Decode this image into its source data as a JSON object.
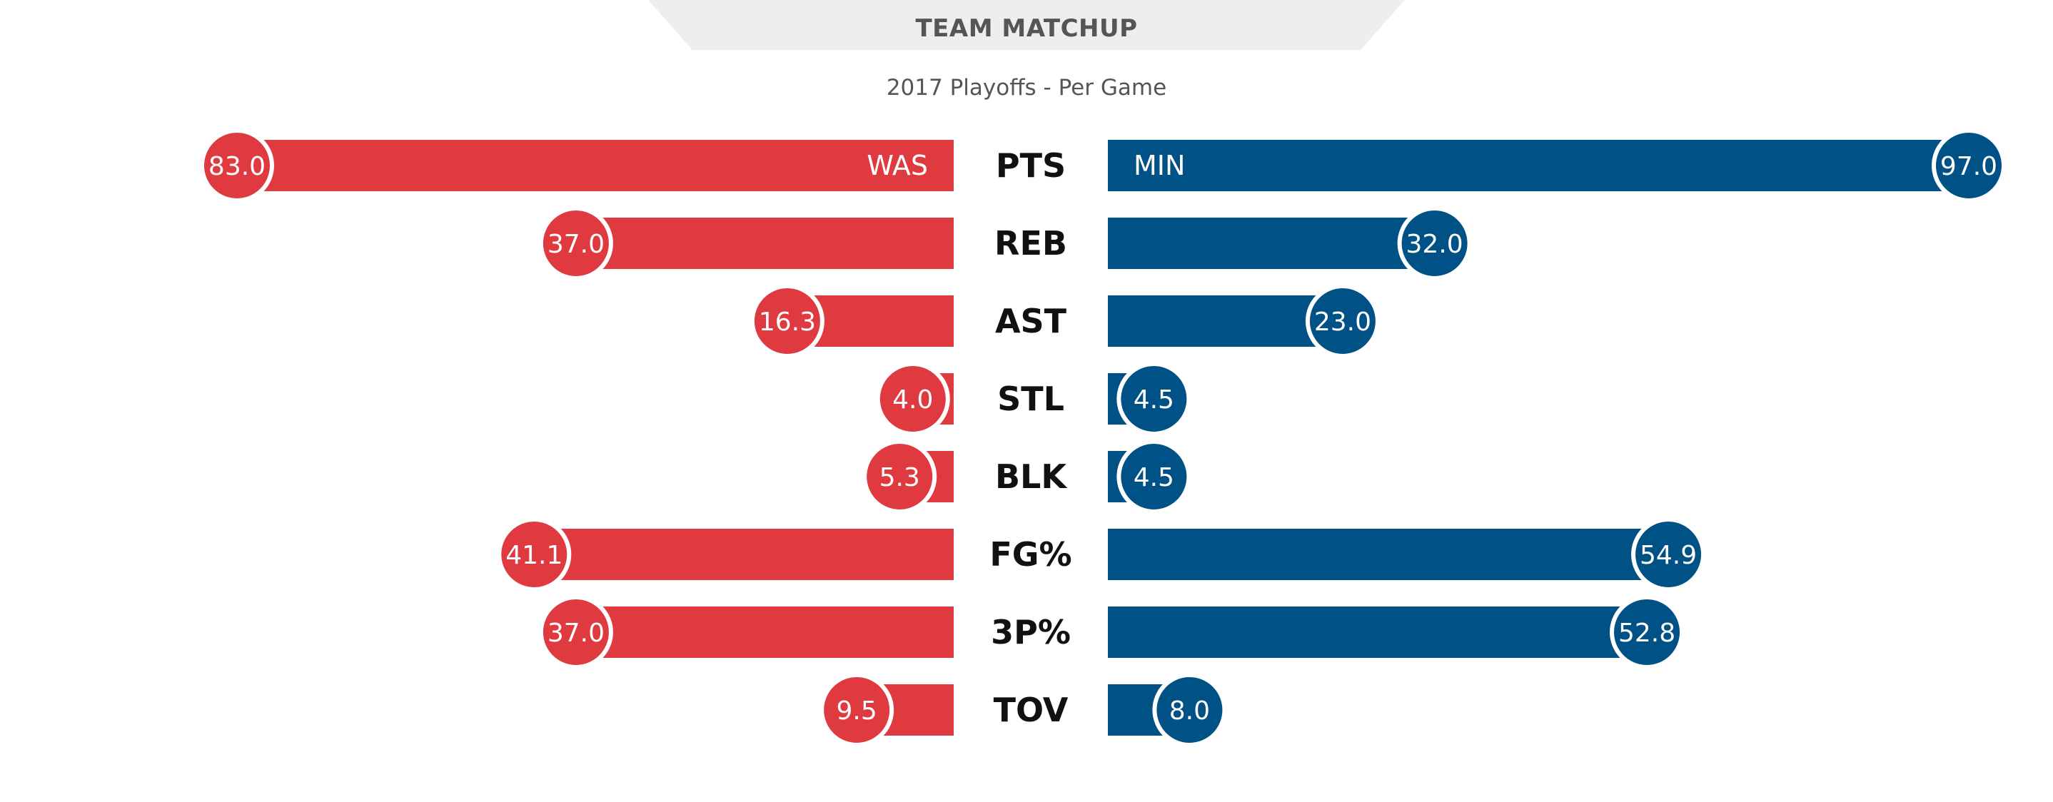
{
  "header": {
    "title": "TEAM MATCHUP",
    "subtitle": "2017 Playoffs - Per Game"
  },
  "colors": {
    "left": "#DE3A40",
    "right": "#005186",
    "header_bg": "#EEEEEE"
  },
  "chart_data": {
    "type": "bar",
    "orientation": "diverging-horizontal",
    "categories": [
      "PTS",
      "REB",
      "AST",
      "STL",
      "BLK",
      "FG%",
      "3P%",
      "TOV"
    ],
    "series": [
      {
        "name": "WAS",
        "values": [
          83.0,
          37.0,
          16.3,
          4.0,
          5.3,
          41.1,
          37.0,
          9.5
        ],
        "labels": [
          "83.0",
          "37.0",
          "16.3",
          "4.0",
          "5.3",
          "41.1",
          "37.0",
          "9.5"
        ]
      },
      {
        "name": "MIN",
        "values": [
          97.0,
          32.0,
          23.0,
          4.5,
          4.5,
          54.9,
          52.8,
          8.0
        ],
        "labels": [
          "97.0",
          "32.0",
          "23.0",
          "4.5",
          "4.5",
          "54.9",
          "52.8",
          "8.0"
        ]
      }
    ]
  }
}
